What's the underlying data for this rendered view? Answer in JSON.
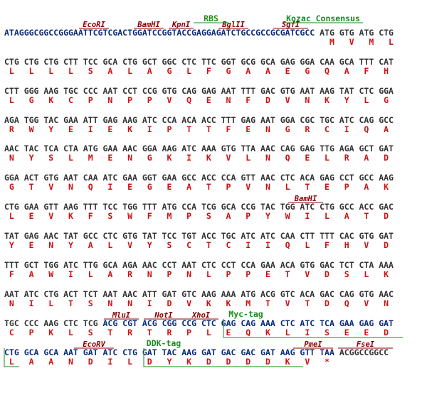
{
  "colors": {
    "nt_default": "#333333",
    "nt_vector": "#0a2a7a",
    "aa": "#cc1111",
    "site": "#8b0000",
    "feature": "#1a8a1a"
  },
  "blocks": [
    {
      "seq": [
        {
          "t": "ATAGGGCGGCCGGGAATTCGTCGACTGGATCCGGTACCGAGGAGATCTGCCGCCGCGATCGCC",
          "c": "nt_vector"
        },
        {
          "t": " ATG GTG ATG CTG",
          "c": "nt_default"
        }
      ],
      "aa": "                                                                  M   V   M   L",
      "labels": [
        {
          "text": "EcoRI",
          "kind": "site",
          "start": 15,
          "end": 21
        },
        {
          "text": "BamHI",
          "kind": "site",
          "start": 26,
          "end": 32
        },
        {
          "text": "KpnI",
          "kind": "site",
          "start": 33,
          "end": 38
        },
        {
          "text": "BglII",
          "kind": "site",
          "start": 43,
          "end": 49
        },
        {
          "text": "SgfI",
          "kind": "site",
          "start": 54,
          "end": 61
        }
      ],
      "top_features": [
        {
          "text": "RBS",
          "start": 38,
          "end": 45
        },
        {
          "text": "Kozac Consensus",
          "start": 56,
          "end": 72
        }
      ],
      "underlines": []
    },
    {
      "seq": [
        {
          "t": "CTG CTG CTG CTT TCC GCA CTG GCT GGC CTC TTC GGT GCG GCA GAG GGA CAA GCA TTT CAT",
          "c": "nt_default"
        }
      ],
      "aa": " L   L   L   L   S   A   L   A   G   L   F   G   A   A   E   G   Q   A   F   H",
      "labels": [],
      "top_features": [],
      "underlines": []
    },
    {
      "seq": [
        {
          "t": "CTT GGG AAG TGC CCC AAT CCT CCG GTG CAG GAG AAT TTT GAC GTG AAT AAG TAT CTC GGA",
          "c": "nt_default"
        }
      ],
      "aa": " L   G   K   C   P   N   P   P   V   Q   E   N   F   D   V   N   K   Y   L   G",
      "labels": [],
      "top_features": [],
      "underlines": []
    },
    {
      "seq": [
        {
          "t": "AGA TGG TAC GAA ATT GAG AAG ATC CCA ACA ACC TTT GAG AAT GGA CGC TGC ATC CAG GCC",
          "c": "nt_default"
        }
      ],
      "aa": " R   W   Y   E   I   E   K   I   P   T   T   F   E   N   G   R   C   I   Q   A",
      "labels": [],
      "top_features": [],
      "underlines": []
    },
    {
      "seq": [
        {
          "t": "AAC TAC TCA CTA ATG GAA AAC GGA AAG ATC AAA GTG TTA AAC CAG GAG TTG AGA GCT GAT",
          "c": "nt_default"
        }
      ],
      "aa": " N   Y   S   L   M   E   N   G   K   I   K   V   L   N   Q   E   L   R   A   D",
      "labels": [],
      "top_features": [],
      "underlines": []
    },
    {
      "seq": [
        {
          "t": "GGA ACT GTG AAT CAA ATC GAA GGT GAA GCC ACC CCA GTT AAC CTC ACA GAG CCT GCC AAG",
          "c": "nt_default"
        }
      ],
      "aa": " G   T   V   N   Q   I   E   G   E   A   T   P   V   N   L   T   E   P   A   K",
      "labels": [],
      "top_features": [],
      "underlines": []
    },
    {
      "seq": [
        {
          "t": "CTG GAA GTT AAG TTT TCC TGG TTT ATG CCA TCG GCA CCG TAC TGG ATC CTG GCC ACC GAC",
          "c": "nt_default"
        }
      ],
      "aa": " L   E   V   K   F   S   W   F   M   P   S   A   P   Y   W   I   L   A   T   D",
      "labels": [
        {
          "text": "BamHI",
          "kind": "site",
          "start": 57,
          "end": 64
        }
      ],
      "top_features": [],
      "underlines": []
    },
    {
      "seq": [
        {
          "t": "TAT GAG AAC TAT GCC CTC GTG TAT TCC TGT ACC TGC ATC ATC CAA CTT TTT CAC GTG GAT",
          "c": "nt_default"
        }
      ],
      "aa": " Y   E   N   Y   A   L   V   Y   S   C   T   C   I   I   Q   L   F   H   V   D",
      "labels": [],
      "top_features": [],
      "underlines": []
    },
    {
      "seq": [
        {
          "t": "TTT GCT TGG ATC TTG GCA AGA AAC CCT AAT CTC CCT CCA GAA ACA GTG GAC TCT CTA AAA",
          "c": "nt_default"
        }
      ],
      "aa": " F   A   W   I   L   A   R   N   P   N   L   P   P   E   T   V   D   S   L   K",
      "labels": [],
      "top_features": [],
      "underlines": []
    },
    {
      "seq": [
        {
          "t": "AAT ATC CTG ACT TCT AAT AAC ATT GAT GTC AAG AAA ATG ACG GTC ACA GAC CAG GTG AAC",
          "c": "nt_default"
        }
      ],
      "aa": " N   I   L   T   S   N   N   I   D   V   K   K   M   T   V   T   D   Q   V   N",
      "labels": [],
      "top_features": [],
      "underlines": []
    },
    {
      "seq": [
        {
          "t": "TGC CCC AAG CTC TCG ",
          "c": "nt_default"
        },
        {
          "t": "ACG CGT ACG CGG CCG CTC GAG CAG AAA CTC ATC TCA GAA GAG GAT",
          "c": "nt_vector"
        }
      ],
      "aa": " C   P   K   L   S   T   R   T   R   P   L   E   Q   K   L   I   S   E   E   D",
      "labels": [
        {
          "text": "MluI",
          "kind": "site",
          "start": 20,
          "end": 27
        },
        {
          "text": "NotI",
          "kind": "site",
          "start": 28,
          "end": 36
        },
        {
          "text": "XhoI",
          "kind": "site",
          "start": 36,
          "end": 43
        }
      ],
      "top_features": [
        {
          "text": "Myc-tag",
          "start": 44,
          "end": 53
        }
      ],
      "underlines": [
        {
          "start": 44,
          "end": 80
        }
      ]
    },
    {
      "seq": [
        {
          "t": "CTG GCA GCA AAT GAT ATC CTG GAT TAC AAG GAT GAC GAC GAT AAG GTT TAA ",
          "c": "nt_vector"
        },
        {
          "t": "ACGGCCGGCC",
          "c": "nt_default"
        }
      ],
      "aa": " L   A   A   N   D   I   L   D   Y   K   D   D   D   D   K   V   *",
      "labels": [
        {
          "text": "EcoRV",
          "kind": "site",
          "start": 14,
          "end": 22
        },
        {
          "text": "PmeI",
          "kind": "site",
          "start": 58,
          "end": 66
        },
        {
          "text": "FseI",
          "kind": "site",
          "start": 67,
          "end": 78
        }
      ],
      "top_features": [
        {
          "text": "DDK-tag",
          "start": 28,
          "end": 36
        }
      ],
      "underlines": [
        {
          "start": 0,
          "end": 3
        },
        {
          "start": 28,
          "end": 60
        }
      ]
    }
  ]
}
